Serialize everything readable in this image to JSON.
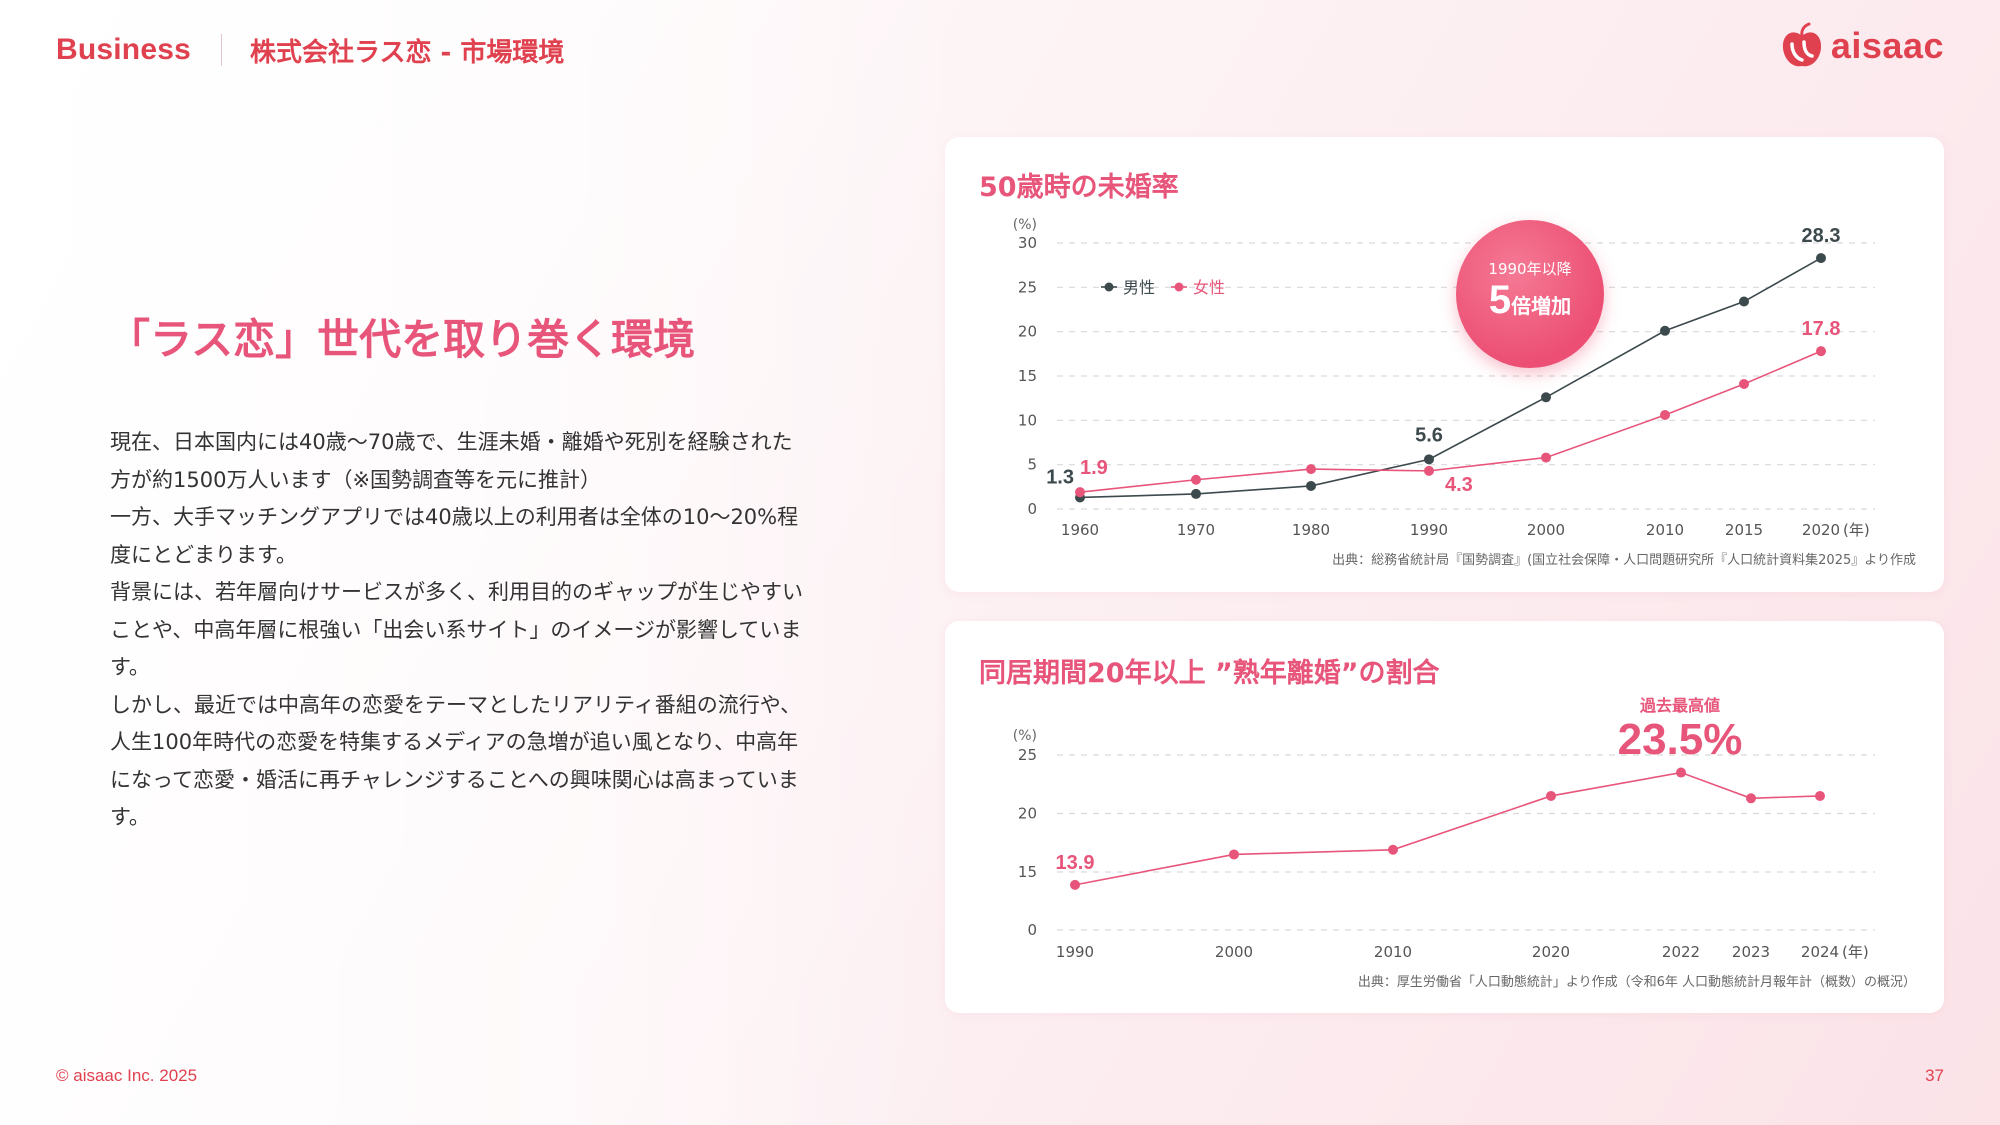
{
  "header": {
    "brand": "Business",
    "breadcrumb": "株式会社ラス恋 - 市場環境",
    "logo_text": "aisaac"
  },
  "main": {
    "headline": "「ラス恋」世代を取り巻く環境",
    "paragraphs": [
      "現在、日本国内には40歳〜70歳で、生涯未婚・離婚や死別を経験された方が約1500万人います（※国勢調査等を元に推計）",
      "一方、大手マッチングアプリでは40歳以上の利用者は全体の10〜20%程度にとどまります。",
      "背景には、若年層向けサービスが多く、利用目的のギャップが生じやすいことや、中高年層に根強い「出会い系サイト」のイメージが影響しています。",
      "しかし、最近では中高年の恋愛をテーマとしたリアリティ番組の流行や、人生100年時代の恋愛を特集するメディアの急増が追い風となり、中高年になって恋愛・婚活に再チャレンジすることへの興味関心は高まっています。"
    ]
  },
  "badge": {
    "line1": "1990年以降",
    "big": "5",
    "small": "倍増加"
  },
  "peak": {
    "caption": "過去最高値",
    "value": "23.5%"
  },
  "footer": {
    "copyright": "© aisaac Inc. 2025",
    "page": "37"
  },
  "colors": {
    "accent": "#e8557a",
    "male": "#3d4a4d",
    "female": "#e8557a",
    "brand": "#e0414f"
  },
  "chart_data": [
    {
      "type": "line",
      "title": "50歳時の未婚率",
      "ylabel": "(%)",
      "xlabel": "(年)",
      "source": "出典：総務省統計局『国勢調査』(国立社会保障・人口問題研究所『人口統計資料集2025』より作成",
      "x": [
        1960,
        1970,
        1980,
        1990,
        2000,
        2010,
        2015,
        2020
      ],
      "x_ticks": [
        "1960",
        "1970",
        "1980",
        "1990",
        "2000",
        "2010",
        "2015",
        "2020"
      ],
      "y_ticks": [
        "0",
        "5",
        "10",
        "15",
        "20",
        "25",
        "30"
      ],
      "ylim": [
        0,
        30
      ],
      "grid": true,
      "legend_position": "top-left",
      "series": [
        {
          "name": "男性",
          "values": [
            1.3,
            1.7,
            2.6,
            5.6,
            12.6,
            20.1,
            23.4,
            28.3
          ]
        },
        {
          "name": "女性",
          "values": [
            1.9,
            3.3,
            4.5,
            4.3,
            5.8,
            10.6,
            14.1,
            17.8
          ]
        }
      ],
      "annotations": [
        {
          "text": "1.3",
          "series": 0,
          "index": 0
        },
        {
          "text": "1.9",
          "series": 1,
          "index": 0
        },
        {
          "text": "5.6",
          "series": 0,
          "index": 3
        },
        {
          "text": "4.3",
          "series": 1,
          "index": 3
        },
        {
          "text": "28.3",
          "series": 0,
          "index": 7
        },
        {
          "text": "17.8",
          "series": 1,
          "index": 7
        }
      ]
    },
    {
      "type": "line",
      "title": "同居期間20年以上 ”熟年離婚”の割合",
      "ylabel": "(%)",
      "xlabel": "(年)",
      "source": "出典：厚生労働省「人口動態統計」より作成（令和6年 人口動態統計月報年計（概数）の概況）",
      "x": [
        1990,
        2000,
        2010,
        2020,
        2022,
        2023,
        2024
      ],
      "x_ticks": [
        "1990",
        "2000",
        "2010",
        "2020",
        "2022",
        "2023",
        "2024"
      ],
      "y_ticks": [
        "0",
        "15",
        "20",
        "25"
      ],
      "ylim": [
        0,
        25
      ],
      "grid": true,
      "series": [
        {
          "name": "",
          "values": [
            13.9,
            16.5,
            16.9,
            21.5,
            23.5,
            21.3,
            21.5
          ]
        }
      ],
      "annotations": [
        {
          "text": "13.9",
          "series": 0,
          "index": 0
        }
      ]
    }
  ]
}
